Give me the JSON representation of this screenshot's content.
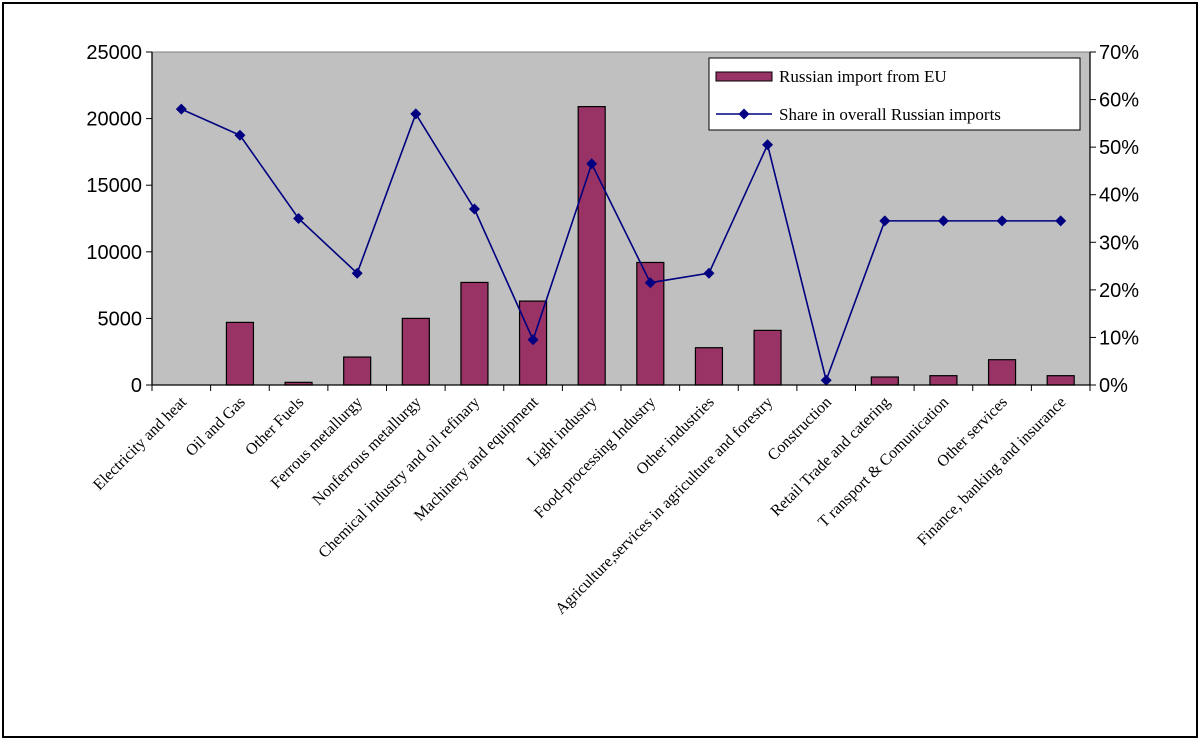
{
  "chart_data": {
    "type": "bar",
    "categories": [
      "Electricity and heat",
      "Oil and Gas",
      "Other Fuels",
      "Ferrous metallurgy",
      "Nonferrous metallurgy",
      "Chemical industry and oil refinary",
      "Machinery and equipment",
      "Light industry",
      "Food-processing Industry",
      "Other industries",
      "Agriculture,services in agriculture and forestry",
      "Construction",
      "Retail Trade and catering",
      "T ransport & Comunication",
      "Other services",
      "Finance, banking and insurance"
    ],
    "series": [
      {
        "name": "Russian import from  EU",
        "type": "bar",
        "axis": "left",
        "color": "#993366",
        "values": [
          0,
          4700,
          200,
          2100,
          5000,
          7700,
          6300,
          20900,
          9200,
          2800,
          4100,
          0,
          600,
          700,
          1900,
          700
        ]
      },
      {
        "name": "Share in overall Russian imports",
        "type": "line",
        "axis": "right",
        "color": "#000080",
        "values": [
          0.58,
          0.525,
          0.35,
          0.235,
          0.57,
          0.37,
          0.095,
          0.465,
          0.215,
          0.235,
          0.505,
          0.01,
          0.345,
          0.345,
          0.345,
          0.345
        ]
      }
    ],
    "y_left": {
      "ylim": [
        0,
        25000
      ],
      "ticks": [
        "0",
        "5000",
        "10000",
        "15000",
        "20000",
        "25000"
      ]
    },
    "y_right": {
      "ylim": [
        0,
        0.7
      ],
      "ticks": [
        "0%",
        "10%",
        "20%",
        "30%",
        "40%",
        "50%",
        "60%",
        "70%"
      ]
    },
    "plot_background": "#c0c0c0",
    "grid": false,
    "legend_position": "top-right"
  }
}
